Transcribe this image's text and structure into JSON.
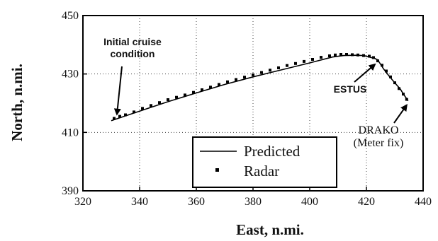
{
  "chart_data": {
    "type": "line",
    "xlabel": "East,  n.mi.",
    "ylabel": "North,  n.mi.",
    "xlim": [
      320,
      440
    ],
    "ylim": [
      390,
      450
    ],
    "xticks": [
      320,
      340,
      360,
      380,
      400,
      420,
      440
    ],
    "yticks": [
      390,
      410,
      430,
      450
    ],
    "grid": "dotted",
    "legend_position": "bottom-center",
    "series": [
      {
        "name": "Predicted",
        "style": "solid-line",
        "color": "#000000",
        "x": [
          330.0,
          340,
          350,
          360,
          370,
          380,
          390,
          400,
          408,
          412,
          416,
          419,
          421,
          423,
          424,
          425,
          426,
          428,
          430,
          432,
          433,
          434,
          434.7
        ],
        "y": [
          414.0,
          417.3,
          420.5,
          423.5,
          426.4,
          429.0,
          431.4,
          433.8,
          435.8,
          436.3,
          436.4,
          436.3,
          435.8,
          435.3,
          434.8,
          433.3,
          431.8,
          429.3,
          427.0,
          424.8,
          423.2,
          421.8,
          420.8
        ]
      },
      {
        "name": "Radar",
        "style": "points",
        "color": "#000000",
        "x": [
          331.0,
          333,
          335,
          338,
          341,
          344,
          347,
          350,
          353,
          356,
          359,
          362,
          365,
          368,
          371,
          374,
          377,
          380,
          383,
          386,
          389,
          392,
          395,
          398,
          401,
          404,
          407,
          409,
          411,
          413,
          415,
          417,
          419,
          421,
          422.5,
          424,
          425.5,
          427,
          428.5,
          430,
          431.5,
          433,
          434.2
        ],
        "y": [
          414.8,
          415.5,
          416.0,
          417.0,
          418.2,
          419.2,
          420.2,
          421.2,
          422.0,
          422.8,
          423.7,
          424.6,
          425.5,
          426.4,
          427.3,
          428.1,
          428.9,
          429.7,
          430.5,
          431.3,
          432.1,
          432.9,
          433.6,
          434.3,
          435.0,
          435.7,
          436.2,
          436.5,
          436.7,
          436.7,
          436.6,
          436.5,
          436.3,
          436.1,
          435.6,
          434.5,
          433.0,
          431.0,
          429.0,
          427.0,
          425.0,
          423.1,
          421.3
        ]
      }
    ],
    "annotations": [
      {
        "text_lines": [
          "Initial cruise",
          "condition"
        ],
        "arrow_to": [
          331.5,
          415.0
        ]
      },
      {
        "text_lines": [
          "ESTUS"
        ],
        "arrow_to": [
          424.0,
          434.5
        ]
      },
      {
        "text_lines": [
          "DRAKO",
          "(Meter fix)"
        ],
        "arrow_to": [
          434.7,
          420.8
        ]
      }
    ],
    "legend": {
      "predicted_label": "Predicted",
      "radar_label": "Radar"
    }
  }
}
